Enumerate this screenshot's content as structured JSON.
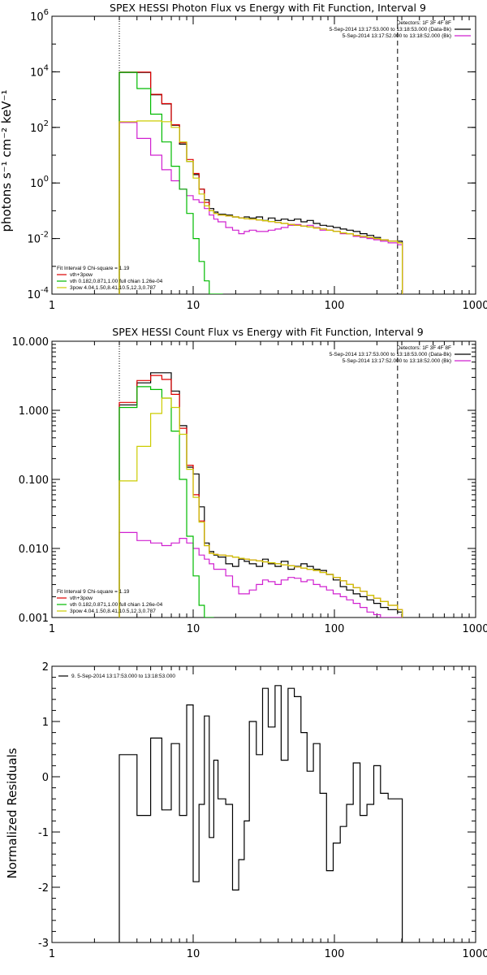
{
  "chart_data": [
    {
      "type": "line",
      "title": "SPEX HESSI Photon Flux vs Energy with Fit Function, Interval 9",
      "ylabel": "photons s⁻¹ cm⁻² keV⁻¹",
      "xlabel": "",
      "xscale": "log",
      "yscale": "log",
      "xlim": [
        1,
        1000
      ],
      "ylim": [
        0.0001,
        1000000
      ],
      "x_ticks": [
        1,
        10,
        100,
        1000
      ],
      "x_tick_labels": [
        "1",
        "10",
        "100",
        "1000"
      ],
      "y_ticks": [
        0.0001,
        0.01,
        1,
        100,
        10000,
        1000000
      ],
      "y_tick_labels": [
        {
          "base": "10",
          "exp": "-4"
        },
        {
          "base": "10",
          "exp": "-2"
        },
        {
          "base": "10",
          "exp": "0"
        },
        {
          "base": "10",
          "exp": "2"
        },
        {
          "base": "10",
          "exp": "4"
        },
        {
          "base": "10",
          "exp": "6"
        }
      ],
      "legend_top_right": [
        {
          "text": "Detectors: 1F 3F 4F 8F",
          "color": ""
        },
        {
          "text": "5-Sep-2014 13:17:53.000 to 13:18:53.000 (Data-Bk)",
          "color": "#000000"
        },
        {
          "text": "5-Sep-2014 13:17:52.000 to 13:18:52.000 (Bk)",
          "color": "#d020d0"
        }
      ],
      "legend_bottom_left": [
        {
          "text": "Fit Interval 9   Chi-square = 1.19",
          "color": ""
        },
        {
          "text": "vth+3pow",
          "color": "#dd0000"
        },
        {
          "text": "vth 0.182,0.871,1.00  full chian 1.26e-04",
          "color": "#00bb00"
        },
        {
          "text": "3pow 4.04,1.50,8.41,10.5,12.3,0.787",
          "color": "#cccc00"
        }
      ],
      "vlines": [
        {
          "x": 3.0,
          "style": "dotted"
        },
        {
          "x": 280,
          "style": "dashed"
        }
      ],
      "series": [
        {
          "name": "Data-Bk",
          "color": "#000000",
          "x": [
            3,
            4,
            5,
            6,
            7,
            8,
            9,
            10,
            11,
            12,
            13,
            14,
            15,
            17,
            19,
            21,
            23,
            25,
            28,
            31,
            34,
            38,
            42,
            47,
            52,
            58,
            64,
            71,
            79,
            88,
            98,
            110,
            122,
            136,
            152,
            170,
            190,
            212,
            240,
            280
          ],
          "y": [
            9500,
            9500,
            1500,
            700,
            120,
            25,
            6,
            2,
            0.6,
            0.25,
            0.12,
            0.09,
            0.075,
            0.07,
            0.06,
            0.055,
            0.06,
            0.055,
            0.06,
            0.045,
            0.055,
            0.045,
            0.05,
            0.045,
            0.05,
            0.04,
            0.045,
            0.035,
            0.03,
            0.028,
            0.025,
            0.022,
            0.02,
            0.018,
            0.015,
            0.013,
            0.011,
            0.009,
            0.008,
            0.008
          ]
        },
        {
          "name": "Bk",
          "color": "#d020d0",
          "x": [
            3,
            4,
            5,
            6,
            7,
            8,
            9,
            10,
            11,
            12,
            13,
            14,
            15,
            17,
            19,
            21,
            23,
            25,
            28,
            31,
            34,
            38,
            42,
            47,
            52,
            58,
            64,
            71,
            79,
            88,
            98,
            110,
            122,
            136,
            152,
            170,
            190,
            212,
            240,
            280
          ],
          "y": [
            150,
            40,
            10,
            3,
            1.2,
            0.6,
            0.35,
            0.25,
            0.2,
            0.12,
            0.07,
            0.05,
            0.04,
            0.025,
            0.02,
            0.015,
            0.018,
            0.02,
            0.018,
            0.018,
            0.02,
            0.022,
            0.025,
            0.03,
            0.032,
            0.028,
            0.03,
            0.025,
            0.02,
            0.02,
            0.018,
            0.015,
            0.015,
            0.012,
            0.011,
            0.01,
            0.009,
            0.008,
            0.007,
            0.006
          ]
        },
        {
          "name": "vth+3pow",
          "color": "#dd0000",
          "x": [
            3,
            4,
            5,
            6,
            7,
            8,
            9,
            10,
            11,
            12,
            13,
            14,
            15,
            17,
            19,
            21,
            23,
            25,
            28,
            31,
            34,
            38,
            42,
            47,
            52,
            58,
            64,
            71,
            79,
            88,
            98,
            110,
            122,
            136,
            152,
            170,
            190,
            212,
            240,
            280
          ],
          "y": [
            9800,
            9800,
            1550,
            720,
            125,
            28,
            7,
            2.2,
            0.6,
            0.2,
            0.1,
            0.08,
            0.07,
            0.065,
            0.06,
            0.055,
            0.052,
            0.05,
            0.047,
            0.044,
            0.041,
            0.038,
            0.035,
            0.032,
            0.03,
            0.028,
            0.026,
            0.024,
            0.022,
            0.02,
            0.018,
            0.016,
            0.015,
            0.013,
            0.012,
            0.011,
            0.01,
            0.009,
            0.008,
            0.007
          ]
        },
        {
          "name": "vth",
          "color": "#00bb00",
          "x": [
            3,
            4,
            5,
            6,
            7,
            8,
            9,
            10,
            11,
            12,
            13,
            14,
            15
          ],
          "y": [
            9600,
            2500,
            300,
            30,
            4,
            0.6,
            0.08,
            0.01,
            0.0015,
            0.0003,
            0.0001,
            0.0001,
            0.0001
          ]
        },
        {
          "name": "3pow",
          "color": "#cccc00",
          "x": [
            3,
            4,
            5,
            6,
            7,
            8,
            9,
            10,
            11,
            12,
            13,
            14,
            15,
            17,
            19,
            21,
            23,
            25,
            28,
            31,
            34,
            38,
            42,
            47,
            52,
            58,
            64,
            71,
            79,
            88,
            98,
            110,
            122,
            136,
            152,
            170,
            190,
            212,
            240,
            280
          ],
          "y": [
            160,
            170,
            170,
            160,
            100,
            30,
            6,
            1.5,
            0.4,
            0.15,
            0.1,
            0.08,
            0.07,
            0.065,
            0.06,
            0.055,
            0.052,
            0.05,
            0.047,
            0.044,
            0.041,
            0.038,
            0.035,
            0.032,
            0.03,
            0.028,
            0.026,
            0.024,
            0.022,
            0.02,
            0.018,
            0.016,
            0.015,
            0.013,
            0.012,
            0.011,
            0.01,
            0.009,
            0.008,
            0.007
          ]
        }
      ]
    },
    {
      "type": "line",
      "title": "SPEX HESSI Count Flux vs Energy with Fit Function, Interval 9",
      "ylabel": "",
      "xlabel": "",
      "xscale": "log",
      "yscale": "log",
      "xlim": [
        1,
        1000
      ],
      "ylim": [
        0.001,
        10
      ],
      "x_ticks": [
        1,
        10,
        100,
        1000
      ],
      "x_tick_labels": [
        "1",
        "10",
        "100",
        "1000"
      ],
      "y_ticks": [
        0.001,
        0.01,
        0.1,
        1,
        10
      ],
      "y_tick_labels": [
        "0.001",
        "0.010",
        "0.100",
        "1.000",
        "10.000"
      ],
      "legend_top_right": [
        {
          "text": "Detectors: 1F 3F 4F 8F",
          "color": ""
        },
        {
          "text": "5-Sep-2014 13:17:53.000 to 13:18:53.000 (Data-Bk)",
          "color": "#000000"
        },
        {
          "text": "5-Sep-2014 13:17:52.000 to 13:18:52.000 (Bk)",
          "color": "#d020d0"
        }
      ],
      "legend_bottom_left": [
        {
          "text": "Fit Interval 9   Chi-square = 1.19",
          "color": ""
        },
        {
          "text": "vth+3pow",
          "color": "#dd0000"
        },
        {
          "text": "vth 0.182,0.871,1.00  full chian 1.26e-04",
          "color": "#00bb00"
        },
        {
          "text": "3pow 4.04,1.50,8.41,10.5,12.3,0.787",
          "color": "#cccc00"
        }
      ],
      "vlines": [
        {
          "x": 3.0,
          "style": "dotted"
        },
        {
          "x": 280,
          "style": "dashed"
        }
      ],
      "series": [
        {
          "name": "Data-Bk",
          "color": "#000000",
          "x": [
            3,
            4,
            5,
            6,
            7,
            8,
            9,
            10,
            11,
            12,
            13,
            14,
            15,
            17,
            19,
            21,
            23,
            25,
            28,
            31,
            34,
            38,
            42,
            47,
            52,
            58,
            64,
            71,
            79,
            88,
            98,
            110,
            122,
            136,
            152,
            170,
            190,
            212,
            240,
            280
          ],
          "y": [
            1.2,
            2.5,
            3.5,
            3.5,
            1.9,
            0.6,
            0.15,
            0.12,
            0.04,
            0.012,
            0.009,
            0.008,
            0.0075,
            0.006,
            0.0055,
            0.007,
            0.0065,
            0.006,
            0.0055,
            0.007,
            0.006,
            0.0055,
            0.0065,
            0.005,
            0.0055,
            0.006,
            0.0055,
            0.005,
            0.0048,
            0.0042,
            0.0035,
            0.0028,
            0.0025,
            0.0022,
            0.002,
            0.0018,
            0.0016,
            0.0014,
            0.0013,
            0.0012
          ]
        },
        {
          "name": "Bk",
          "color": "#d020d0",
          "x": [
            3,
            4,
            5,
            6,
            7,
            8,
            9,
            10,
            11,
            12,
            13,
            14,
            15,
            17,
            19,
            21,
            23,
            25,
            28,
            31,
            34,
            38,
            42,
            47,
            52,
            58,
            64,
            71,
            79,
            88,
            98,
            110,
            122,
            136,
            152,
            170,
            190,
            212,
            240,
            280
          ],
          "y": [
            0.017,
            0.013,
            0.012,
            0.011,
            0.012,
            0.014,
            0.012,
            0.01,
            0.008,
            0.007,
            0.006,
            0.005,
            0.005,
            0.004,
            0.0028,
            0.0022,
            0.0022,
            0.0025,
            0.003,
            0.0035,
            0.0033,
            0.003,
            0.0035,
            0.0038,
            0.0037,
            0.0033,
            0.0035,
            0.003,
            0.0028,
            0.0025,
            0.0022,
            0.002,
            0.0018,
            0.0016,
            0.0014,
            0.0012,
            0.0011,
            0.001,
            0.001,
            0.001
          ]
        },
        {
          "name": "vth+3pow",
          "color": "#dd0000",
          "x": [
            3,
            4,
            5,
            6,
            7,
            8,
            9,
            10,
            11,
            12,
            13,
            14,
            15,
            17,
            19,
            21,
            23,
            25,
            28,
            31,
            34,
            38,
            42,
            47,
            52,
            58,
            64,
            71,
            79,
            88,
            98,
            110,
            122,
            136,
            152,
            170,
            190,
            212,
            240,
            280
          ],
          "y": [
            1.3,
            2.7,
            3.2,
            2.8,
            1.7,
            0.55,
            0.16,
            0.06,
            0.025,
            0.011,
            0.0085,
            0.0082,
            0.008,
            0.0078,
            0.0075,
            0.0072,
            0.007,
            0.0068,
            0.0066,
            0.0064,
            0.0062,
            0.006,
            0.0058,
            0.0056,
            0.0054,
            0.0052,
            0.005,
            0.0048,
            0.0045,
            0.0042,
            0.0038,
            0.0034,
            0.003,
            0.0027,
            0.0024,
            0.0021,
            0.0019,
            0.0017,
            0.0015,
            0.0013
          ]
        },
        {
          "name": "vth",
          "color": "#00bb00",
          "x": [
            3,
            4,
            5,
            6,
            7,
            8,
            9,
            10,
            11,
            12,
            13
          ],
          "y": [
            1.1,
            2.2,
            2.0,
            1.5,
            0.5,
            0.1,
            0.015,
            0.004,
            0.0015,
            0.001,
            0.001
          ]
        },
        {
          "name": "3pow",
          "color": "#cccc00",
          "x": [
            3,
            4,
            5,
            6,
            7,
            8,
            9,
            10,
            11,
            12,
            13,
            14,
            15,
            17,
            19,
            21,
            23,
            25,
            28,
            31,
            34,
            38,
            42,
            47,
            52,
            58,
            64,
            71,
            79,
            88,
            98,
            110,
            122,
            136,
            152,
            170,
            190,
            212,
            240,
            280
          ],
          "y": [
            0.095,
            0.3,
            0.9,
            1.5,
            1.1,
            0.45,
            0.14,
            0.055,
            0.024,
            0.011,
            0.0085,
            0.0082,
            0.008,
            0.0078,
            0.0075,
            0.0072,
            0.007,
            0.0068,
            0.0066,
            0.0064,
            0.0062,
            0.006,
            0.0058,
            0.0056,
            0.0054,
            0.0052,
            0.005,
            0.0048,
            0.0045,
            0.0042,
            0.0038,
            0.0034,
            0.003,
            0.0027,
            0.0024,
            0.0021,
            0.0019,
            0.0017,
            0.0015,
            0.0013
          ]
        }
      ]
    },
    {
      "type": "line",
      "title": "",
      "ylabel": "Normalized Residuals",
      "xlabel": "",
      "xscale": "log",
      "yscale": "linear",
      "xlim": [
        1,
        1000
      ],
      "ylim": [
        -3,
        2
      ],
      "x_ticks": [
        1,
        10,
        100,
        1000
      ],
      "x_tick_labels": [
        "1",
        "10",
        "100",
        "1000"
      ],
      "y_ticks": [
        -3,
        -2,
        -1,
        0,
        1,
        2
      ],
      "y_tick_labels": [
        "-3",
        "-2",
        "-1",
        "0",
        "1",
        "2"
      ],
      "legend_top_left": [
        {
          "text": "9.  5-Sep-2014 13:17:53.000 to 13:18:53.000",
          "color": "#000000"
        }
      ],
      "series": [
        {
          "name": "9.",
          "color": "#000000",
          "x": [
            3,
            4,
            5,
            6,
            7,
            8,
            9,
            10,
            11,
            12,
            13,
            14,
            15,
            17,
            19,
            21,
            23,
            25,
            28,
            31,
            34,
            38,
            42,
            47,
            52,
            58,
            64,
            71,
            79,
            88,
            98,
            110,
            122,
            136,
            152,
            170,
            190,
            212,
            240,
            280
          ],
          "y": [
            0.4,
            -0.7,
            0.7,
            -0.6,
            0.6,
            -0.7,
            1.3,
            -1.9,
            -0.5,
            1.1,
            -1.1,
            0.3,
            -0.4,
            -0.5,
            -2.05,
            -1.5,
            -0.8,
            1.0,
            0.4,
            1.6,
            0.9,
            1.65,
            0.3,
            1.6,
            1.45,
            0.8,
            0.1,
            0.6,
            -0.3,
            -1.7,
            -1.2,
            -0.9,
            -0.5,
            0.25,
            -0.7,
            -0.5,
            0.2,
            -0.3,
            -0.4,
            -0.4
          ]
        }
      ]
    }
  ]
}
